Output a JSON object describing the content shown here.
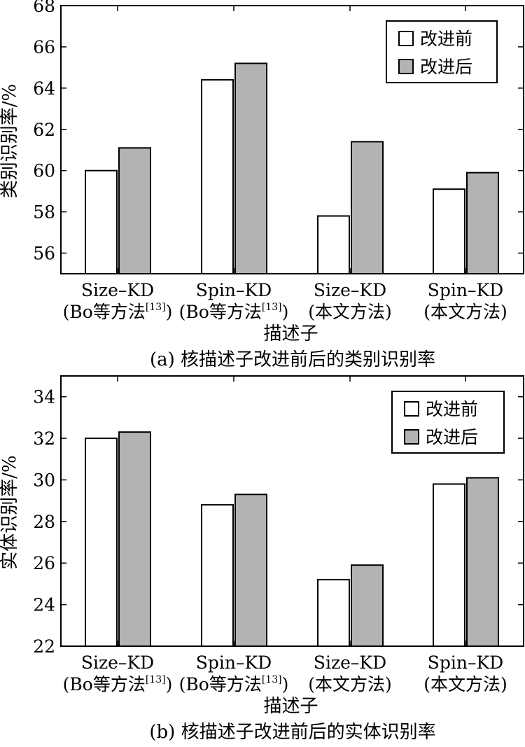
{
  "colors": {
    "before": "#ffffff",
    "after": "#b3b3b3",
    "stroke": "#000000"
  },
  "chart_data": [
    {
      "type": "bar",
      "title": "",
      "caption": "(a) 核描述子改进前后的类别识别率",
      "xlabel": "描述子",
      "ylabel": "类别识别率/%",
      "ylim": [
        55,
        68
      ],
      "yticks": [
        "56",
        "58",
        "60",
        "62",
        "64",
        "66",
        "68"
      ],
      "categories": [
        {
          "line1": "Size–KD",
          "line2_main": "(Bo等方法",
          "line2_sup": "[13]",
          "line2_end": ")"
        },
        {
          "line1": "Spin–KD",
          "line2_main": "(Bo等方法",
          "line2_sup": "[13]",
          "line2_end": ")"
        },
        {
          "line1": "Size–KD",
          "line2_main": "(本文方法)",
          "line2_sup": "",
          "line2_end": ""
        },
        {
          "line1": "Spin–KD",
          "line2_main": "(本文方法)",
          "line2_sup": "",
          "line2_end": ""
        }
      ],
      "series": [
        {
          "name": "改进前",
          "values": [
            60.0,
            64.4,
            57.8,
            59.1
          ]
        },
        {
          "name": "改进后",
          "values": [
            61.1,
            65.2,
            61.4,
            59.9
          ]
        }
      ],
      "legend_position": "top-right",
      "grid": false
    },
    {
      "type": "bar",
      "title": "",
      "caption": "(b) 核描述子改进前后的实体识别率",
      "xlabel": "描述子",
      "ylabel": "实体识别率/%",
      "ylim": [
        22,
        35
      ],
      "yticks": [
        "22",
        "24",
        "26",
        "28",
        "30",
        "32",
        "34"
      ],
      "categories": [
        {
          "line1": "Size–KD",
          "line2_main": "(Bo等方法",
          "line2_sup": "[13]",
          "line2_end": ")"
        },
        {
          "line1": "Spin–KD",
          "line2_main": "(Bo等方法",
          "line2_sup": "[13]",
          "line2_end": ")"
        },
        {
          "line1": "Size–KD",
          "line2_main": "(本文方法)",
          "line2_sup": "",
          "line2_end": ""
        },
        {
          "line1": "Spin–KD",
          "line2_main": "(本文方法)",
          "line2_sup": "",
          "line2_end": ""
        }
      ],
      "series": [
        {
          "name": "改进前",
          "values": [
            32.0,
            28.8,
            25.2,
            29.8
          ]
        },
        {
          "name": "改进后",
          "values": [
            32.3,
            29.3,
            25.9,
            30.1
          ]
        }
      ],
      "legend_position": "top-right",
      "grid": false
    }
  ]
}
